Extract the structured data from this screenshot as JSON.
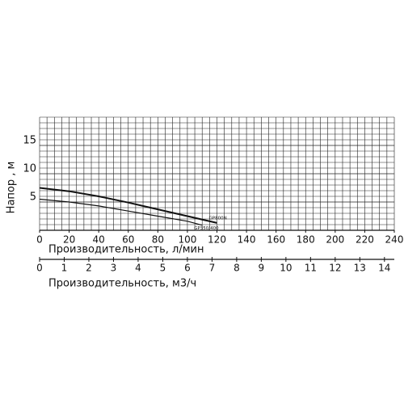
{
  "chart_data": {
    "type": "line",
    "y_label": "Напор , м",
    "x_label": "Производительность, л/мин",
    "x2_label": "Производительность, м3/ч",
    "xlim": [
      0,
      240
    ],
    "xticks": [
      0,
      20,
      40,
      60,
      80,
      100,
      120,
      140,
      160,
      180,
      200,
      220,
      240
    ],
    "ylim": [
      0,
      20
    ],
    "yticks": [
      5,
      10,
      15
    ],
    "x2lim": [
      0,
      14.4
    ],
    "x2ticks": [
      0,
      1,
      2,
      3,
      4,
      5,
      6,
      7,
      8,
      9,
      10,
      11,
      12,
      13,
      14
    ],
    "grid": true,
    "series": [
      {
        "name": "GP800N",
        "color": "#111111",
        "x": [
          0,
          20,
          40,
          60,
          80,
          100,
          120
        ],
        "values": [
          7.5,
          6.9,
          6.0,
          4.9,
          3.7,
          2.5,
          1.3
        ]
      },
      {
        "name": "GP350/400",
        "color": "#111111",
        "x": [
          0,
          20,
          40,
          60,
          80,
          100,
          110
        ],
        "values": [
          5.5,
          5.0,
          4.3,
          3.4,
          2.5,
          1.6,
          0.9
        ]
      }
    ]
  }
}
